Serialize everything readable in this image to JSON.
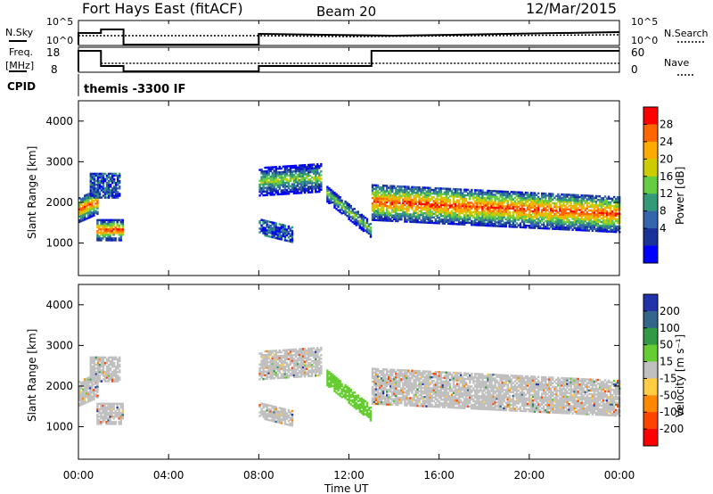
{
  "header": {
    "station": "Fort Hays East (fitACF)",
    "beam": "Beam 20",
    "date": "12/Mar/2015"
  },
  "top_panels": {
    "nsky": {
      "label": "N.Sky",
      "ticks": [
        "10^5",
        "10^0"
      ],
      "right_label": "N.Search",
      "right_ticks": [
        "10^5",
        "10^0"
      ]
    },
    "freq": {
      "label_lines": [
        "Freq.",
        "[MHz]"
      ],
      "ticks": [
        "18",
        "8"
      ],
      "right_label": "Nave",
      "right_ticks": [
        "60",
        "0"
      ]
    },
    "cpid": {
      "label": "CPID",
      "value": "themis -3300 IF"
    }
  },
  "time_axis": {
    "label": "Time UT",
    "ticks": [
      "00:00",
      "04:00",
      "08:00",
      "12:00",
      "16:00",
      "20:00",
      "00:00"
    ]
  },
  "chart_data": [
    {
      "type": "heatmap",
      "name": "power",
      "ylabel": "Slant Range [km]",
      "yticks": [
        "4000",
        "3000",
        "2000",
        "1000"
      ],
      "ylim": [
        200,
        4500
      ],
      "xlim": [
        0,
        24
      ],
      "colorbar": {
        "title": "Power [dB]",
        "ticks": [
          "28",
          "24",
          "20",
          "16",
          "12",
          "8",
          "4"
        ],
        "colors": [
          "#ff0000",
          "#ff6600",
          "#ffaa00",
          "#cccc00",
          "#66cc44",
          "#339977",
          "#3366aa",
          "#1a3399",
          "#0000ff"
        ]
      },
      "echo_regions": [
        {
          "t0": 0.0,
          "t1": 0.8,
          "r_center": [
            1800,
            2000
          ],
          "r_width": 600,
          "level": "high"
        },
        {
          "t0": 0.8,
          "t1": 2.0,
          "r_center": [
            1300,
            1300
          ],
          "r_width": 500,
          "level": "high"
        },
        {
          "t0": 0.5,
          "t1": 1.8,
          "r_center": [
            2400,
            2400
          ],
          "r_width": 600,
          "level": "low"
        },
        {
          "t0": 8.0,
          "t1": 10.8,
          "r_center": [
            2500,
            2600
          ],
          "r_width": 700,
          "level": "mid"
        },
        {
          "t0": 8.0,
          "t1": 9.5,
          "r_center": [
            1400,
            1200
          ],
          "r_width": 400,
          "level": "low"
        },
        {
          "t0": 11.0,
          "t1": 13.0,
          "r_center": [
            2200,
            1300
          ],
          "r_width": 400,
          "level": "mid"
        },
        {
          "t0": 13.0,
          "t1": 24.0,
          "r_center": [
            2000,
            1700
          ],
          "r_width": 900,
          "level": "high"
        }
      ]
    },
    {
      "type": "heatmap",
      "name": "velocity",
      "ylabel": "Slant Range [km]",
      "yticks": [
        "4000",
        "3000",
        "2000",
        "1000"
      ],
      "ylim": [
        200,
        4500
      ],
      "xlim": [
        0,
        24
      ],
      "colorbar": {
        "title": "Velocity [m s⁻¹]",
        "ticks": [
          "200",
          "100",
          "50",
          "15",
          "-15",
          "-50",
          "-100",
          "-200"
        ],
        "colors": [
          "#2233aa",
          "#336688",
          "#339944",
          "#66cc33",
          "#c0c0c0",
          "#ffcc44",
          "#ff8800",
          "#ff4400",
          "#ff0000"
        ]
      }
    }
  ]
}
